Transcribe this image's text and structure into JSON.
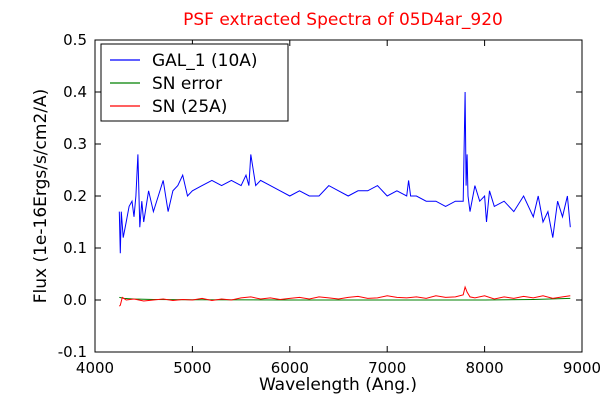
{
  "chart_data": {
    "type": "line",
    "title": "PSF extracted Spectra of 05D4ar_920",
    "title_color": "#ff0000",
    "xlabel": "Wavelength (Ang.)",
    "ylabel": "Flux (1e-16Ergs/s/cm2/A)",
    "xlim": [
      4000,
      9000
    ],
    "ylim": [
      -0.1,
      0.5
    ],
    "xticks": [
      "4000",
      "5000",
      "6000",
      "7000",
      "8000",
      "9000"
    ],
    "yticks": [
      "-0.1",
      "0.0",
      "0.1",
      "0.2",
      "0.3",
      "0.4",
      "0.5"
    ],
    "grid": false,
    "legend_position": "top-left",
    "series": [
      {
        "name": "GAL_1 (10A)",
        "color": "#0000ff",
        "x": [
          4250,
          4260,
          4270,
          4290,
          4320,
          4350,
          4380,
          4400,
          4420,
          4440,
          4460,
          4480,
          4500,
          4550,
          4600,
          4650,
          4700,
          4750,
          4800,
          4850,
          4900,
          4950,
          5000,
          5100,
          5200,
          5300,
          5400,
          5500,
          5550,
          5580,
          5600,
          5650,
          5700,
          5800,
          5900,
          6000,
          6100,
          6200,
          6300,
          6400,
          6500,
          6600,
          6700,
          6800,
          6900,
          7000,
          7100,
          7200,
          7220,
          7240,
          7300,
          7400,
          7500,
          7600,
          7700,
          7780,
          7800,
          7810,
          7820,
          7830,
          7850,
          7900,
          7950,
          8000,
          8020,
          8050,
          8100,
          8200,
          8300,
          8400,
          8500,
          8550,
          8600,
          8650,
          8700,
          8750,
          8800,
          8850,
          8880
        ],
        "values": [
          0.17,
          0.09,
          0.17,
          0.12,
          0.15,
          0.18,
          0.19,
          0.16,
          0.2,
          0.28,
          0.14,
          0.19,
          0.15,
          0.21,
          0.17,
          0.2,
          0.23,
          0.17,
          0.21,
          0.22,
          0.24,
          0.2,
          0.21,
          0.22,
          0.23,
          0.22,
          0.23,
          0.22,
          0.24,
          0.22,
          0.28,
          0.22,
          0.23,
          0.22,
          0.21,
          0.2,
          0.21,
          0.2,
          0.2,
          0.22,
          0.21,
          0.2,
          0.21,
          0.21,
          0.22,
          0.2,
          0.21,
          0.2,
          0.23,
          0.2,
          0.2,
          0.19,
          0.19,
          0.18,
          0.19,
          0.19,
          0.4,
          0.22,
          0.28,
          0.2,
          0.17,
          0.22,
          0.19,
          0.2,
          0.15,
          0.21,
          0.18,
          0.19,
          0.17,
          0.2,
          0.16,
          0.2,
          0.15,
          0.17,
          0.12,
          0.19,
          0.16,
          0.2,
          0.14
        ]
      },
      {
        "name": "SN error",
        "color": "#008000",
        "x": [
          4250,
          4300,
          4400,
          4600,
          5000,
          6000,
          7000,
          8000,
          8500,
          8880
        ],
        "values": [
          0.005,
          0.003,
          0.002,
          0.001,
          0.0005,
          0.0,
          0.0,
          0.0,
          0.001,
          0.003
        ]
      },
      {
        "name": "SN (25A)",
        "color": "#ff0000",
        "x": [
          4250,
          4260,
          4280,
          4320,
          4400,
          4500,
          4600,
          4700,
          4800,
          4900,
          5000,
          5100,
          5200,
          5300,
          5400,
          5500,
          5600,
          5700,
          5800,
          5900,
          6000,
          6100,
          6200,
          6300,
          6400,
          6500,
          6600,
          6700,
          6800,
          6900,
          7000,
          7100,
          7200,
          7300,
          7400,
          7500,
          7600,
          7700,
          7780,
          7800,
          7820,
          7850,
          7900,
          8000,
          8100,
          8200,
          8300,
          8400,
          8500,
          8600,
          8700,
          8800,
          8880
        ],
        "values": [
          -0.012,
          -0.01,
          0.005,
          0.0,
          0.002,
          -0.002,
          0.0,
          0.002,
          -0.001,
          0.001,
          0.0,
          0.003,
          -0.001,
          0.002,
          0.0,
          0.004,
          0.006,
          0.002,
          0.004,
          0.001,
          0.003,
          0.005,
          0.002,
          0.006,
          0.004,
          0.002,
          0.005,
          0.007,
          0.003,
          0.004,
          0.008,
          0.005,
          0.004,
          0.006,
          0.003,
          0.008,
          0.005,
          0.006,
          0.01,
          0.025,
          0.015,
          0.006,
          0.004,
          0.008,
          0.002,
          0.006,
          0.003,
          0.007,
          0.004,
          0.008,
          0.003,
          0.006,
          0.008
        ]
      }
    ]
  }
}
